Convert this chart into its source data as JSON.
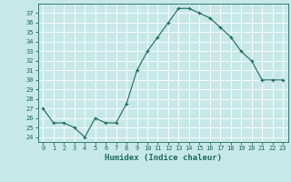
{
  "x": [
    0,
    1,
    2,
    3,
    4,
    5,
    6,
    7,
    8,
    9,
    10,
    11,
    12,
    13,
    14,
    15,
    16,
    17,
    18,
    19,
    20,
    21,
    22,
    23
  ],
  "y": [
    27.0,
    25.5,
    25.5,
    25.0,
    24.0,
    26.0,
    25.5,
    25.5,
    27.5,
    31.0,
    33.0,
    34.5,
    36.0,
    37.5,
    37.5,
    37.0,
    36.5,
    35.5,
    34.5,
    33.0,
    32.0,
    30.0,
    30.0,
    30.0
  ],
  "xlabel": "Humidex (Indice chaleur)",
  "line_color": "#1a6b5a",
  "marker": "+",
  "bg_color": "#c8e8e8",
  "grid_color": "#ffffff",
  "tick_label_color": "#1a6b5a",
  "ylim": [
    23.5,
    38.0
  ],
  "xlim": [
    -0.5,
    23.5
  ],
  "yticks": [
    24,
    25,
    26,
    27,
    28,
    29,
    30,
    31,
    32,
    33,
    34,
    35,
    36,
    37
  ],
  "xticks": [
    0,
    1,
    2,
    3,
    4,
    5,
    6,
    7,
    8,
    9,
    10,
    11,
    12,
    13,
    14,
    15,
    16,
    17,
    18,
    19,
    20,
    21,
    22,
    23
  ]
}
